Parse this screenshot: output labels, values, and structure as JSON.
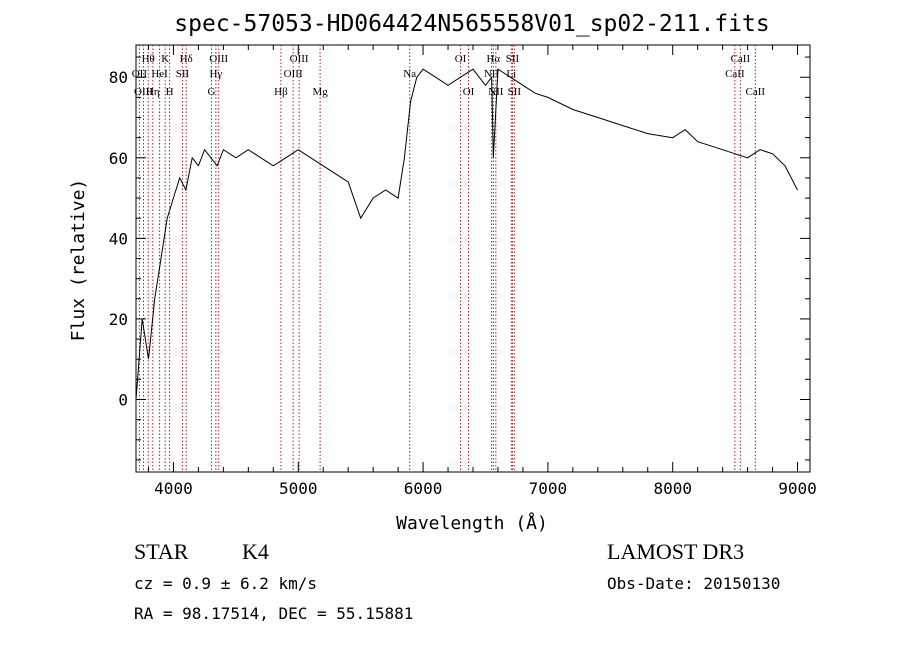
{
  "chart_data": {
    "type": "line",
    "title": "spec-57053-HD064424N565558V01_sp02-211.fits",
    "xlabel": "Wavelength (Å)",
    "ylabel": "Flux (relative)",
    "xlim": [
      3700,
      9100
    ],
    "ylim": [
      -18,
      88
    ],
    "xticks": [
      4000,
      5000,
      6000,
      7000,
      8000,
      9000
    ],
    "yticks": [
      0,
      20,
      40,
      60,
      80
    ],
    "grid": false,
    "series": [
      {
        "name": "spectrum",
        "x": [
          3700,
          3750,
          3800,
          3850,
          3900,
          3950,
          4000,
          4050,
          4100,
          4150,
          4200,
          4250,
          4300,
          4350,
          4400,
          4500,
          4600,
          4700,
          4800,
          4900,
          5000,
          5100,
          5200,
          5300,
          5400,
          5500,
          5600,
          5700,
          5800,
          5850,
          5900,
          5950,
          6000,
          6100,
          6200,
          6300,
          6400,
          6500,
          6550,
          6563,
          6600,
          6700,
          6800,
          6900,
          7000,
          7200,
          7400,
          7600,
          7800,
          8000,
          8100,
          8200,
          8400,
          8500,
          8600,
          8700,
          8800,
          8900,
          9000
        ],
        "y": [
          0,
          20,
          10,
          25,
          35,
          45,
          50,
          55,
          52,
          60,
          58,
          62,
          60,
          58,
          62,
          60,
          62,
          60,
          58,
          60,
          62,
          60,
          58,
          56,
          54,
          45,
          50,
          52,
          50,
          60,
          74,
          80,
          82,
          80,
          78,
          80,
          82,
          78,
          80,
          60,
          82,
          80,
          78,
          76,
          75,
          72,
          70,
          68,
          66,
          65,
          67,
          64,
          62,
          61,
          60,
          62,
          61,
          58,
          52
        ]
      }
    ],
    "lines": [
      {
        "label": "Hθ",
        "x": 3798,
        "row": 1
      },
      {
        "label": "OII",
        "x": 3727,
        "row": 2
      },
      {
        "label": "OIII",
        "x": 3760,
        "row": 3
      },
      {
        "label": "K",
        "x": 3934,
        "row": 1
      },
      {
        "label": "HeI",
        "x": 3889,
        "row": 2
      },
      {
        "label": "Hη",
        "x": 3835,
        "row": 3
      },
      {
        "label": "Hδ",
        "x": 4102,
        "row": 1
      },
      {
        "label": "SII",
        "x": 4072,
        "row": 2
      },
      {
        "label": "H",
        "x": 3969,
        "row": 3
      },
      {
        "label": "OIII",
        "x": 4363,
        "row": 1
      },
      {
        "label": "Hγ",
        "x": 4340,
        "row": 2
      },
      {
        "label": "G",
        "x": 4305,
        "row": 3
      },
      {
        "label": "OIII",
        "x": 5007,
        "row": 1
      },
      {
        "label": "OIII",
        "x": 4959,
        "row": 2
      },
      {
        "label": "Hβ",
        "x": 4861,
        "row": 3
      },
      {
        "label": "Mg",
        "x": 5175,
        "row": 3
      },
      {
        "label": "Na",
        "x": 5893,
        "row": 2
      },
      {
        "label": "OI",
        "x": 6300,
        "row": 1
      },
      {
        "label": "OI",
        "x": 6364,
        "row": 3
      },
      {
        "label": "Hα",
        "x": 6563,
        "row": 1
      },
      {
        "label": "NII",
        "x": 6548,
        "row": 2
      },
      {
        "label": "NII",
        "x": 6583,
        "row": 3
      },
      {
        "label": "SII",
        "x": 6716,
        "row": 1
      },
      {
        "label": "Li",
        "x": 6707,
        "row": 2
      },
      {
        "label": "SII",
        "x": 6731,
        "row": 3
      },
      {
        "label": "CaII",
        "x": 8542,
        "row": 1
      },
      {
        "label": "CaII",
        "x": 8498,
        "row": 2
      },
      {
        "label": "CaII",
        "x": 8662,
        "row": 3
      }
    ]
  },
  "info": {
    "class_label": "STAR",
    "subclass": "K4",
    "survey": "LAMOST DR3",
    "cz": "cz = 0.9 ± 6.2 km/s",
    "obs_date": "Obs-Date: 20150130",
    "radec": "RA =  98.17514, DEC =  55.15881"
  },
  "colors": {
    "spectrum": "#000000",
    "lines": "#b22222",
    "axes": "#000000"
  }
}
